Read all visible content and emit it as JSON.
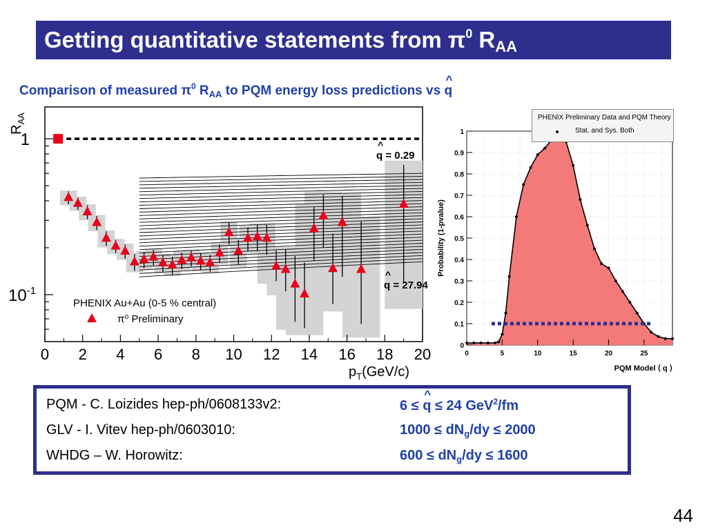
{
  "title": {
    "prefix": "Getting quantitative statements from ",
    "pi": "π",
    "sup": "0",
    "r": " R",
    "sub": "AA"
  },
  "subtitle": {
    "prefix": "Comparison of measured ",
    "pi": "π",
    "sup": "0",
    "r": " R",
    "sub": "AA",
    "suffix": " to PQM energy loss predictions vs ",
    "q": "q"
  },
  "chart_data": [
    {
      "type": "scatter",
      "xlabel": "p_T(GeV/c)",
      "ylabel": "R_AA",
      "yscale": "log",
      "xlim": [
        0,
        20
      ],
      "ylim": [
        0.05,
        1.6
      ],
      "x_ticks": [
        "0",
        "2",
        "4",
        "6",
        "8",
        "10",
        "12",
        "14",
        "16",
        "18",
        "20"
      ],
      "y_ticks": [
        "1",
        "10^-1"
      ],
      "legend": {
        "line1": "PHENIX Au+Au (0-5 % central)",
        "line2": "π⁰ Preliminary"
      },
      "annotations": {
        "top": "q = 0.29",
        "bottom": "q = 27.94"
      },
      "reference_point": {
        "x": 0.7,
        "y": 1.0
      },
      "series": [
        {
          "marker": "triangle",
          "color": "#e8001c",
          "x": [
            1.25,
            1.75,
            2.25,
            2.75,
            3.25,
            3.75,
            4.25,
            4.75,
            5.25,
            5.75,
            6.25,
            6.75,
            7.25,
            7.75,
            8.25,
            8.75,
            9.25,
            9.75,
            10.25,
            10.75,
            11.25,
            11.75,
            12.25,
            12.75,
            13.25,
            13.75,
            14.25,
            14.75,
            15.25,
            15.75,
            16.75,
            19.0
          ],
          "y": [
            0.42,
            0.385,
            0.34,
            0.29,
            0.23,
            0.205,
            0.19,
            0.162,
            0.168,
            0.174,
            0.16,
            0.155,
            0.166,
            0.172,
            0.164,
            0.16,
            0.185,
            0.25,
            0.19,
            0.23,
            0.235,
            0.23,
            0.152,
            0.145,
            0.117,
            0.101,
            0.265,
            0.32,
            0.147,
            0.29,
            0.145,
            0.38
          ],
          "err_lo": [
            0.04,
            0.035,
            0.035,
            0.03,
            0.025,
            0.02,
            0.02,
            0.02,
            0.02,
            0.02,
            0.02,
            0.02,
            0.02,
            0.02,
            0.02,
            0.02,
            0.025,
            0.04,
            0.035,
            0.04,
            0.045,
            0.05,
            0.03,
            0.04,
            0.05,
            0.04,
            0.1,
            0.12,
            0.06,
            0.16,
            0.08,
            0.26
          ],
          "err_hi": [
            0.04,
            0.035,
            0.035,
            0.03,
            0.025,
            0.02,
            0.02,
            0.02,
            0.02,
            0.02,
            0.02,
            0.02,
            0.02,
            0.02,
            0.02,
            0.02,
            0.025,
            0.04,
            0.035,
            0.04,
            0.045,
            0.05,
            0.04,
            0.05,
            0.06,
            0.06,
            0.1,
            0.12,
            0.1,
            0.14,
            0.15,
            0.3
          ]
        }
      ],
      "pqm_curves": {
        "qhat_min": 0.29,
        "qhat_max": 27.94,
        "count": 30
      }
    },
    {
      "type": "area",
      "xlabel": "PQM Model ⟨ q ⟩",
      "ylabel": "Probability (1-pvalue)",
      "xlim": [
        0,
        29
      ],
      "ylim": [
        0,
        1
      ],
      "x_ticks": [
        "0",
        "5",
        "10",
        "15",
        "20",
        "25"
      ],
      "y_ticks": [
        "0",
        "0.1",
        "0.2",
        "0.3",
        "0.4",
        "0.5",
        "0.6",
        "0.7",
        "0.8",
        "0.9",
        "1"
      ],
      "legend": {
        "title": "PHENIX Preliminary Data and PQM Theory",
        "entry": "Stat. and Sys. Both"
      },
      "threshold": 0.1,
      "fill_color": "#f47a7a",
      "x": [
        0,
        1,
        2,
        3,
        4,
        4.5,
        5,
        5.5,
        6,
        7,
        8,
        9,
        10,
        11,
        12,
        13,
        14,
        15,
        16,
        17,
        18,
        19,
        20,
        21,
        22,
        23,
        24,
        25,
        26,
        27,
        28,
        29
      ],
      "y": [
        0.01,
        0.01,
        0.01,
        0.01,
        0.01,
        0.015,
        0.05,
        0.15,
        0.32,
        0.6,
        0.75,
        0.83,
        0.89,
        0.92,
        0.96,
        1.0,
        0.95,
        0.84,
        0.68,
        0.56,
        0.45,
        0.38,
        0.36,
        0.3,
        0.25,
        0.2,
        0.15,
        0.1,
        0.06,
        0.04,
        0.03,
        0.03
      ]
    }
  ],
  "references": [
    {
      "label": "PQM - C. Loizides hep-ph/0608133v2:",
      "value_a": "6 ≤ ",
      "value_q": "q",
      "value_b": " ≤ 24 GeV",
      "sup": "2",
      "value_c": "/fm"
    },
    {
      "label": "GLV - I. Vitev hep-ph/0603010:",
      "value_a": "1000 ≤ dN",
      "sub": "g",
      "value_b": "/dy ≤ 2000"
    },
    {
      "label": "WHDG – W. Horowitz:",
      "value_a": "600 ≤ dN",
      "sub": "g",
      "value_b": "/dy ≤ 1600"
    }
  ],
  "page_number": "44"
}
